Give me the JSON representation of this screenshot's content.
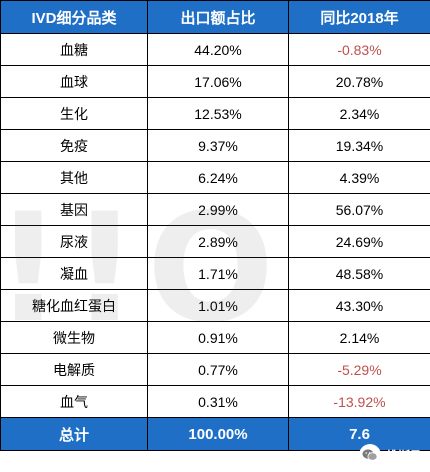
{
  "header": {
    "col1": "IVD细分品类",
    "col2": "出口额占比",
    "col3": "同比2018年"
  },
  "rows": [
    {
      "category": "血糖",
      "share": "44.20%",
      "yoy": "-0.83%"
    },
    {
      "category": "血球",
      "share": "17.06%",
      "yoy": "20.78%"
    },
    {
      "category": "生化",
      "share": "12.53%",
      "yoy": "2.34%"
    },
    {
      "category": "免疫",
      "share": "9.37%",
      "yoy": "19.34%"
    },
    {
      "category": "其他",
      "share": "6.24%",
      "yoy": "4.39%"
    },
    {
      "category": "基因",
      "share": "2.99%",
      "yoy": "56.07%"
    },
    {
      "category": "尿液",
      "share": "2.89%",
      "yoy": "24.69%"
    },
    {
      "category": "凝血",
      "share": "1.71%",
      "yoy": "48.58%"
    },
    {
      "category": "糖化血红蛋白",
      "share": "1.01%",
      "yoy": "43.30%"
    },
    {
      "category": "微生物",
      "share": "0.91%",
      "yoy": "2.14%"
    },
    {
      "category": "电解质",
      "share": "0.77%",
      "yoy": "-5.29%"
    },
    {
      "category": "血气",
      "share": "0.31%",
      "yoy": "-13.92%"
    }
  ],
  "total": {
    "label": "总计",
    "share": "100.00%",
    "yoy": "7.6"
  },
  "watermark": {
    "text": "!!O"
  },
  "brand": {
    "name": "维斯马",
    "icon": "wechat-icon"
  },
  "colors": {
    "header_bg": "#1f6fc6",
    "negative_text": "#c0504d"
  }
}
